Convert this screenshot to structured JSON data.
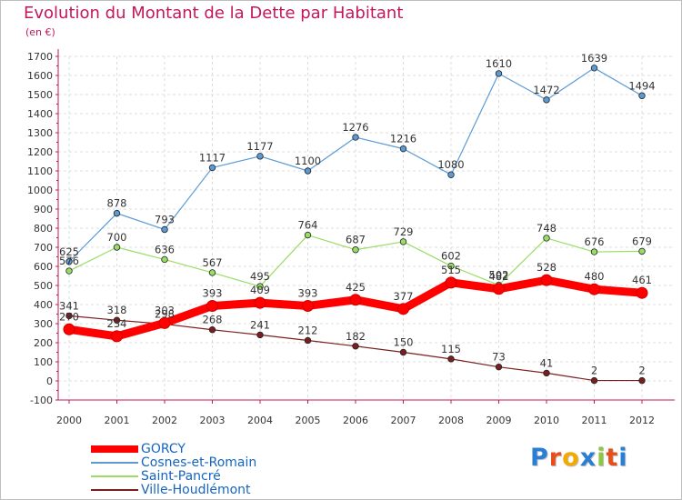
{
  "title": "Evolution du Montant de la Dette par Habitant",
  "unit_label": "(en €)",
  "logo": {
    "letters": [
      "P",
      "r",
      "o",
      "x",
      "i",
      "t",
      "i"
    ],
    "colors": [
      "#2a7fd4",
      "#e84e1b",
      "#f2a900",
      "#2a7fd4",
      "#8dc63f",
      "#e84e1b",
      "#2a7fd4"
    ]
  },
  "chart_data": {
    "type": "line",
    "x": [
      "2000",
      "2001",
      "2002",
      "2003",
      "2004",
      "2005",
      "2006",
      "2007",
      "2008",
      "2009",
      "2010",
      "2011",
      "2012"
    ],
    "ylim": [
      -100,
      1700
    ],
    "yticks": [
      "-100",
      "0",
      "100",
      "200",
      "300",
      "400",
      "500",
      "600",
      "700",
      "800",
      "900",
      "1000",
      "1100",
      "1200",
      "1300",
      "1400",
      "1500",
      "1600",
      "1700"
    ],
    "grid": true,
    "legend_position": "bottom-left",
    "series": [
      {
        "name": "Ville-Houdlémont",
        "color": "#7a1f1f",
        "values": [
          341,
          318,
          298,
          268,
          241,
          212,
          182,
          150,
          115,
          73,
          41,
          2,
          2
        ],
        "labels": [
          "341",
          "318",
          "298",
          "268",
          "241",
          "212",
          "182",
          "150",
          "115",
          "73",
          "41",
          "2",
          "2"
        ]
      },
      {
        "name": "Saint-Pancré",
        "color": "#99dd66",
        "values": [
          576,
          700,
          636,
          567,
          495,
          764,
          687,
          729,
          602,
          502,
          748,
          676,
          679
        ],
        "labels": [
          "576",
          "700",
          "636",
          "567",
          "495",
          "764",
          "687",
          "729",
          "602",
          "502",
          "748",
          "676",
          "679"
        ]
      },
      {
        "name": "Cosnes-et-Romain",
        "color": "#5b9bd5",
        "values": [
          625,
          878,
          793,
          1117,
          1177,
          1100,
          1276,
          1216,
          1080,
          1610,
          1472,
          1639,
          1494
        ],
        "labels": [
          "625",
          "878",
          "793",
          "1117",
          "1177",
          "1100",
          "1276",
          "1216",
          "1080",
          "1610",
          "1472",
          "1639",
          "1494"
        ]
      },
      {
        "name": "GORCY",
        "color": "#ff0000",
        "values": [
          270,
          234,
          303,
          393,
          409,
          393,
          425,
          377,
          515,
          482,
          528,
          480,
          461
        ],
        "labels": [
          "270",
          "234",
          "303",
          "393",
          "409",
          "393",
          "425",
          "377",
          "515",
          "482",
          "528",
          "480",
          "461"
        ]
      }
    ],
    "legend": [
      {
        "name": "GORCY",
        "color": "#ff0000",
        "text_color": "#1565c0"
      },
      {
        "name": "Cosnes-et-Romain",
        "color": "#5b9bd5",
        "text_color": "#1565c0"
      },
      {
        "name": "Saint-Pancré",
        "color": "#99dd66",
        "text_color": "#1565c0"
      },
      {
        "name": "Ville-Houdlémont",
        "color": "#7a1f1f",
        "text_color": "#1565c0"
      }
    ]
  }
}
